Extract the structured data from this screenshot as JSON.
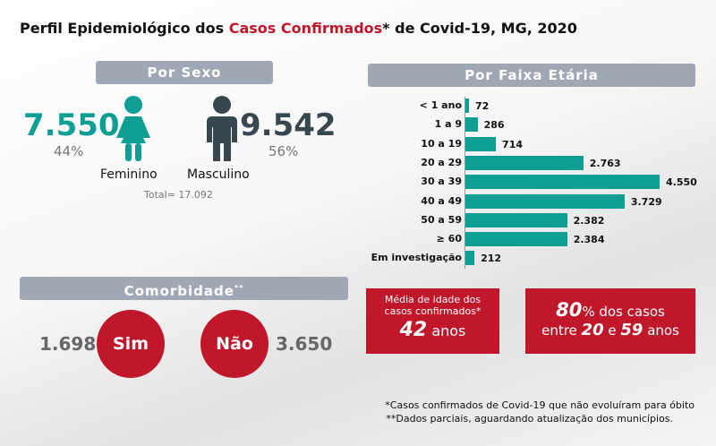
{
  "title": {
    "prefix": "Perfil Epidemiológico dos ",
    "highlight": "Casos Confirmados",
    "suffix": "* de Covid-19, MG, 2020"
  },
  "sexo": {
    "header": "Por Sexo",
    "feminino": {
      "value": "7.550",
      "pct": "44%",
      "label": "Feminino"
    },
    "masculino": {
      "value": "9.542",
      "pct": "56%",
      "label": "Masculino"
    },
    "total": "Total= 17.092"
  },
  "faixa": {
    "header": "Por Faixa Etária"
  },
  "chart_data": {
    "type": "bar",
    "orientation": "horizontal",
    "categories": [
      "< 1 ano",
      "1 a 9",
      "10 a 19",
      "20 a 29",
      "30 a 39",
      "40 a 49",
      "50 a 59",
      "≥ 60",
      "Em investigação"
    ],
    "values": [
      72,
      286,
      714,
      2763,
      4550,
      3729,
      2382,
      2384,
      212
    ],
    "labels": [
      "72",
      "286",
      "714",
      "2.763",
      "4.550",
      "3.729",
      "2.382",
      "2.384",
      "212"
    ],
    "color": "#0e9e93"
  },
  "comorbidade": {
    "header": "Comorbidade",
    "sup": "**",
    "sim": {
      "label": "Sim",
      "value": "1.698"
    },
    "nao": {
      "label": "Não",
      "value": "3.650"
    }
  },
  "media": {
    "line1": "Média de idade dos",
    "line2": "casos confirmados*",
    "value": "42",
    "unit": "anos"
  },
  "pct80": {
    "value": "80",
    "rest": "% dos casos",
    "line2a": "entre ",
    "from": "20",
    "mid": " e ",
    "to": "59",
    "end": " anos"
  },
  "footnotes": [
    "*Casos confirmados de Covid-19 que não evoluíram para óbito",
    "**Dados parciais, aguardando atualização dos municípios."
  ]
}
